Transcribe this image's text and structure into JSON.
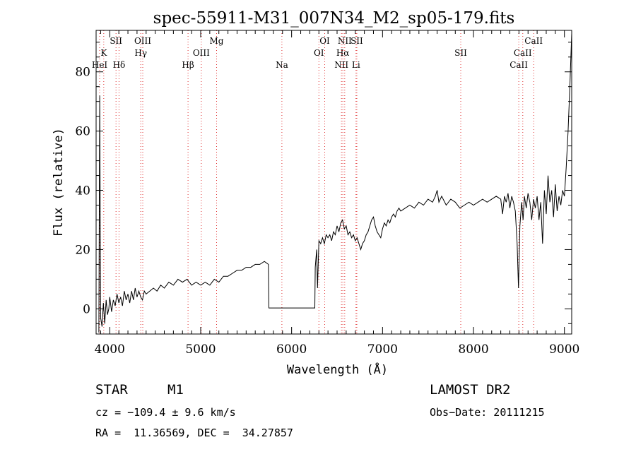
{
  "chart_data": {
    "type": "line",
    "title": "spec-55911-M31_007N34_M2_sp05-179.fits",
    "xlabel": "Wavelength (Å)",
    "ylabel": "Flux (relative)",
    "xlim": [
      3850,
      9080
    ],
    "ylim": [
      -8.5,
      94
    ],
    "xticks": [
      4000,
      5000,
      6000,
      7000,
      8000,
      9000
    ],
    "yticks": [
      0,
      20,
      40,
      60,
      80
    ],
    "grid": false,
    "series": [
      {
        "color": "#000000",
        "points": [
          [
            3880,
            -8
          ],
          [
            3890,
            72
          ],
          [
            3900,
            -3
          ],
          [
            3915,
            -6
          ],
          [
            3930,
            2
          ],
          [
            3945,
            -5
          ],
          [
            3960,
            3
          ],
          [
            3975,
            -2
          ],
          [
            3990,
            0
          ],
          [
            4000,
            4
          ],
          [
            4020,
            -1
          ],
          [
            4040,
            3
          ],
          [
            4060,
            1
          ],
          [
            4080,
            5
          ],
          [
            4100,
            2
          ],
          [
            4120,
            4
          ],
          [
            4140,
            1
          ],
          [
            4160,
            6
          ],
          [
            4180,
            3
          ],
          [
            4200,
            5
          ],
          [
            4220,
            2
          ],
          [
            4240,
            6
          ],
          [
            4260,
            3
          ],
          [
            4280,
            7
          ],
          [
            4300,
            4
          ],
          [
            4320,
            6
          ],
          [
            4340,
            4
          ],
          [
            4360,
            3
          ],
          [
            4380,
            6
          ],
          [
            4400,
            5
          ],
          [
            4440,
            6
          ],
          [
            4480,
            7
          ],
          [
            4520,
            6
          ],
          [
            4560,
            8
          ],
          [
            4600,
            7
          ],
          [
            4650,
            9
          ],
          [
            4700,
            8
          ],
          [
            4750,
            10
          ],
          [
            4800,
            9
          ],
          [
            4850,
            10
          ],
          [
            4900,
            8
          ],
          [
            4950,
            9
          ],
          [
            5000,
            8
          ],
          [
            5050,
            9
          ],
          [
            5100,
            8
          ],
          [
            5150,
            10
          ],
          [
            5200,
            9
          ],
          [
            5250,
            11
          ],
          [
            5300,
            11
          ],
          [
            5350,
            12
          ],
          [
            5400,
            13
          ],
          [
            5450,
            13
          ],
          [
            5500,
            14
          ],
          [
            5550,
            14
          ],
          [
            5600,
            15
          ],
          [
            5650,
            15
          ],
          [
            5700,
            16
          ],
          [
            5745,
            15
          ],
          [
            5750,
            0.3
          ],
          [
            6000,
            0.3
          ],
          [
            6255,
            0.3
          ],
          [
            6260,
            14
          ],
          [
            6275,
            20
          ],
          [
            6285,
            7
          ],
          [
            6300,
            23
          ],
          [
            6320,
            22
          ],
          [
            6340,
            24
          ],
          [
            6360,
            22
          ],
          [
            6380,
            25
          ],
          [
            6400,
            24
          ],
          [
            6420,
            25
          ],
          [
            6440,
            23
          ],
          [
            6460,
            26
          ],
          [
            6480,
            25
          ],
          [
            6500,
            28
          ],
          [
            6520,
            26
          ],
          [
            6540,
            29
          ],
          [
            6560,
            30
          ],
          [
            6580,
            27
          ],
          [
            6600,
            28
          ],
          [
            6620,
            25
          ],
          [
            6640,
            26
          ],
          [
            6660,
            24
          ],
          [
            6680,
            25
          ],
          [
            6700,
            23
          ],
          [
            6720,
            24
          ],
          [
            6740,
            22
          ],
          [
            6760,
            20
          ],
          [
            6780,
            22
          ],
          [
            6800,
            23
          ],
          [
            6820,
            25
          ],
          [
            6840,
            26
          ],
          [
            6860,
            28
          ],
          [
            6880,
            30
          ],
          [
            6900,
            31
          ],
          [
            6920,
            28
          ],
          [
            6940,
            26
          ],
          [
            6960,
            25
          ],
          [
            6980,
            24
          ],
          [
            7000,
            27
          ],
          [
            7020,
            29
          ],
          [
            7040,
            28
          ],
          [
            7060,
            30
          ],
          [
            7080,
            29
          ],
          [
            7100,
            31
          ],
          [
            7120,
            32
          ],
          [
            7140,
            31
          ],
          [
            7160,
            33
          ],
          [
            7180,
            34
          ],
          [
            7200,
            33
          ],
          [
            7250,
            34
          ],
          [
            7300,
            35
          ],
          [
            7350,
            34
          ],
          [
            7400,
            36
          ],
          [
            7450,
            35
          ],
          [
            7500,
            37
          ],
          [
            7550,
            36
          ],
          [
            7580,
            38
          ],
          [
            7600,
            40
          ],
          [
            7620,
            36
          ],
          [
            7650,
            38
          ],
          [
            7700,
            35
          ],
          [
            7750,
            37
          ],
          [
            7800,
            36
          ],
          [
            7850,
            34
          ],
          [
            7900,
            35
          ],
          [
            7950,
            36
          ],
          [
            8000,
            35
          ],
          [
            8050,
            36
          ],
          [
            8100,
            37
          ],
          [
            8150,
            36
          ],
          [
            8200,
            37
          ],
          [
            8250,
            38
          ],
          [
            8300,
            37
          ],
          [
            8320,
            32
          ],
          [
            8340,
            38
          ],
          [
            8360,
            36
          ],
          [
            8380,
            39
          ],
          [
            8400,
            34
          ],
          [
            8420,
            38
          ],
          [
            8440,
            36
          ],
          [
            8460,
            33
          ],
          [
            8480,
            22
          ],
          [
            8495,
            7
          ],
          [
            8510,
            28
          ],
          [
            8530,
            36
          ],
          [
            8545,
            30
          ],
          [
            8560,
            38
          ],
          [
            8580,
            34
          ],
          [
            8600,
            39
          ],
          [
            8620,
            36
          ],
          [
            8640,
            30
          ],
          [
            8660,
            37
          ],
          [
            8680,
            34
          ],
          [
            8700,
            38
          ],
          [
            8720,
            30
          ],
          [
            8740,
            36
          ],
          [
            8760,
            22
          ],
          [
            8780,
            40
          ],
          [
            8800,
            32
          ],
          [
            8820,
            45
          ],
          [
            8840,
            36
          ],
          [
            8860,
            40
          ],
          [
            8880,
            31
          ],
          [
            8900,
            42
          ],
          [
            8920,
            33
          ],
          [
            8940,
            38
          ],
          [
            8960,
            35
          ],
          [
            8980,
            40
          ],
          [
            9000,
            38
          ],
          [
            9020,
            48
          ],
          [
            9040,
            60
          ],
          [
            9060,
            75
          ],
          [
            9080,
            93
          ]
        ]
      }
    ],
    "lines": [
      {
        "label": "K",
        "wl": 3934,
        "row": 1
      },
      {
        "label": "HeI",
        "wl": 3889,
        "row": 2
      },
      {
        "label": "SII",
        "wl": 4069,
        "row": 0
      },
      {
        "label": "Hδ",
        "wl": 4102,
        "row": 2
      },
      {
        "label": "OIII",
        "wl": 4363,
        "row": 0
      },
      {
        "label": "Hγ",
        "wl": 4341,
        "row": 1
      },
      {
        "label": "Hβ",
        "wl": 4861,
        "row": 2
      },
      {
        "label": "OIII",
        "wl": 5007,
        "row": 1
      },
      {
        "label": "Mg",
        "wl": 5175,
        "row": 0
      },
      {
        "label": "Na",
        "wl": 5893,
        "row": 2
      },
      {
        "label": "OI",
        "wl": 6364,
        "row": 0
      },
      {
        "label": "OI",
        "wl": 6300,
        "row": 1
      },
      {
        "label": "NII",
        "wl": 6584,
        "row": 0
      },
      {
        "label": "Hα",
        "wl": 6563,
        "row": 1
      },
      {
        "label": "NII",
        "wl": 6548,
        "row": 2
      },
      {
        "label": "SII",
        "wl": 6717,
        "row": 0
      },
      {
        "label": "Li",
        "wl": 6708,
        "row": 2
      },
      {
        "label": "SII",
        "wl": 7860,
        "row": 1
      },
      {
        "label": "CaII",
        "wl": 8662,
        "row": 0
      },
      {
        "label": "CaII",
        "wl": 8542,
        "row": 1
      },
      {
        "label": "CaII",
        "wl": 8498,
        "row": 2
      }
    ]
  },
  "info": {
    "class_label": "STAR",
    "subclass": "M1",
    "survey": "LAMOST DR2",
    "cz": "cz = −109.4 ± 9.6 km/s",
    "obs_date": "Obs−Date: 20111215",
    "coords": "RA =  11.36569, DEC =  34.27857"
  }
}
